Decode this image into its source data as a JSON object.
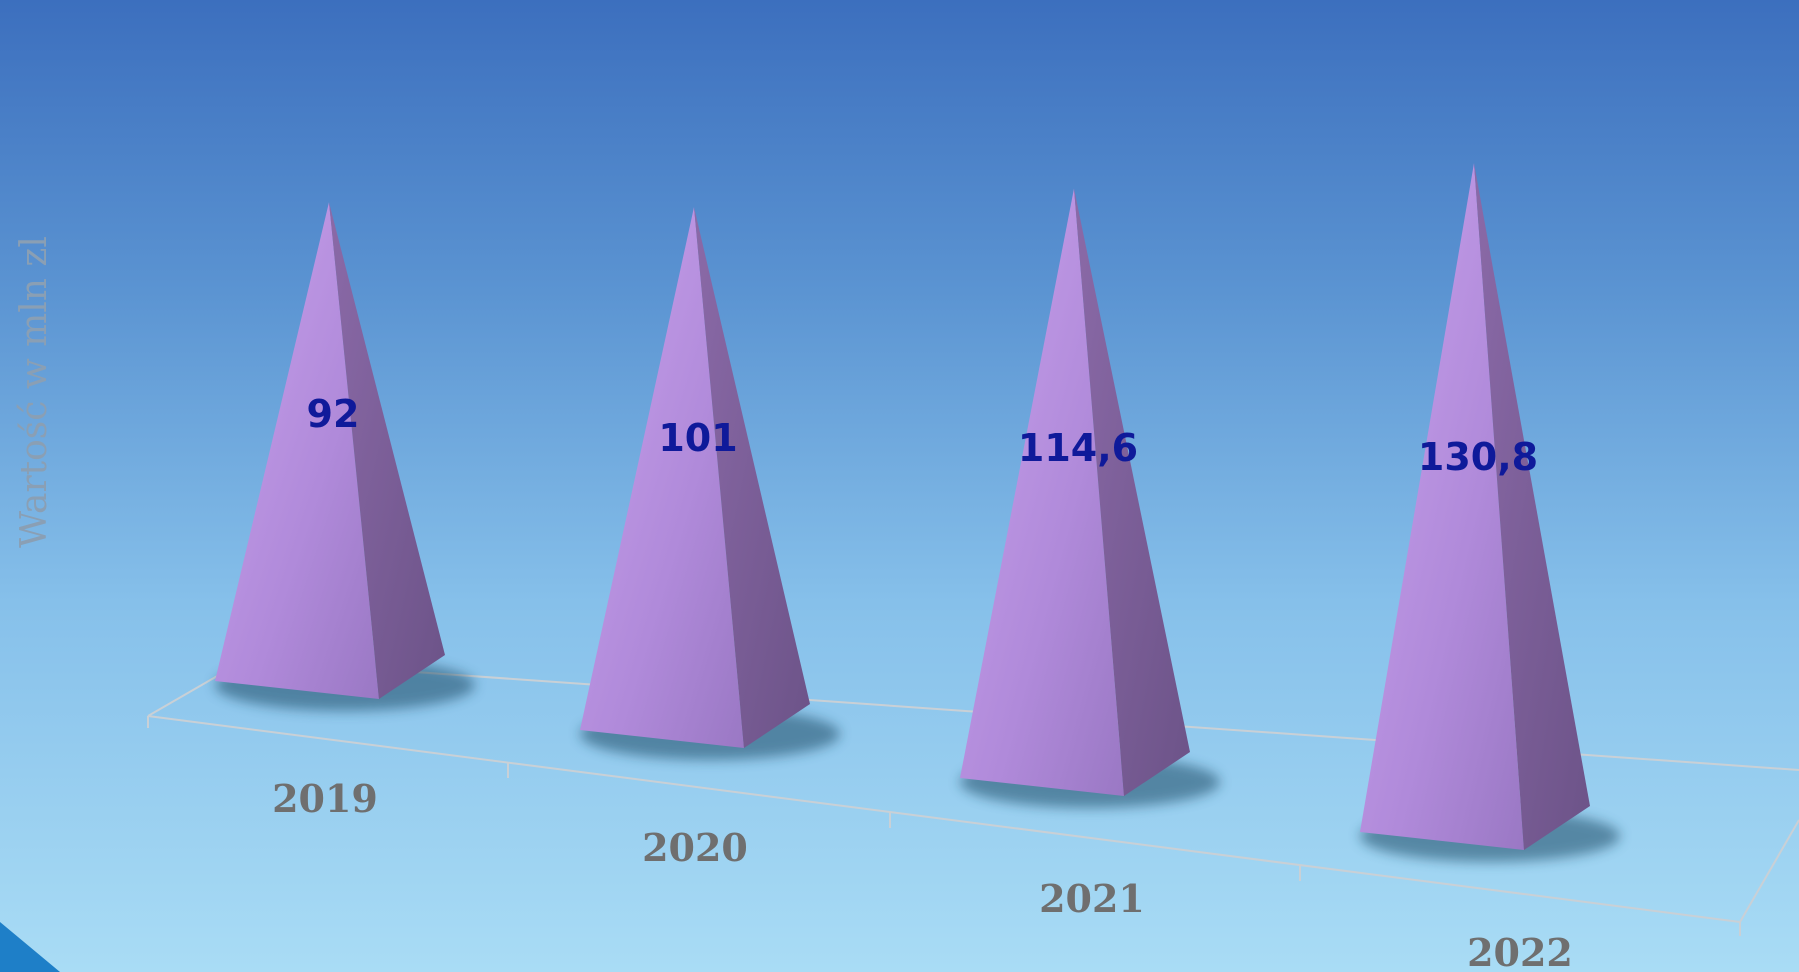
{
  "chart_data": {
    "type": "bar",
    "style": "3d-pyramid",
    "categories": [
      "2019",
      "2020",
      "2021",
      "2022"
    ],
    "values": [
      92,
      101,
      114.6,
      130.8
    ],
    "value_labels": [
      "92",
      "101",
      "114,6",
      "130,8"
    ],
    "ylabel": "Wartość w mln zl",
    "xlabel": "",
    "title": "",
    "grid": false,
    "legend": false
  },
  "colors": {
    "background_top": "#3c6fbe",
    "background_bottom": "#a9dcf5",
    "pyramid_front": "#b993e0",
    "pyramid_side": "#7a5f96",
    "value_label": "#0f1a9a",
    "category_label": "#6f6f6f",
    "corner_accent": "#1e7fc8"
  }
}
